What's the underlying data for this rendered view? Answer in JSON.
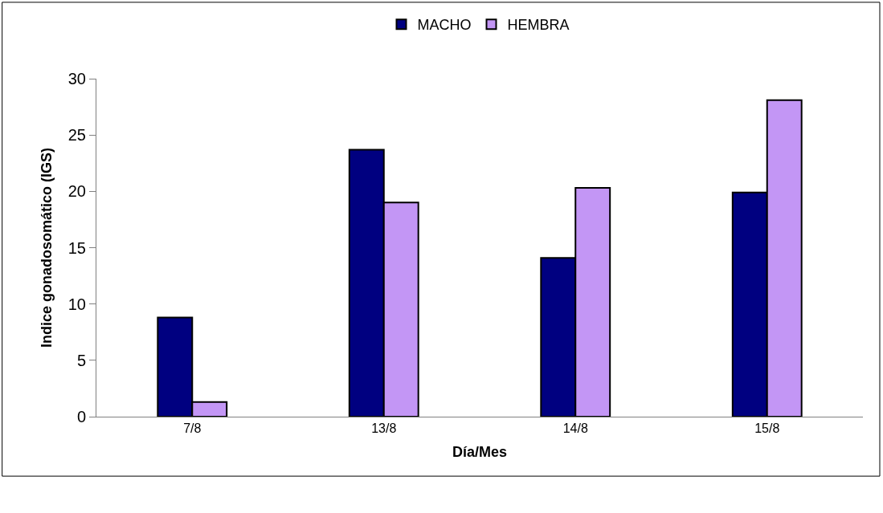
{
  "chart_data": {
    "type": "bar",
    "xlabel": "Día/Mes",
    "ylabel": "Indice gonadosomático (IGS)",
    "categories": [
      "7/8",
      "13/8",
      "14/8",
      "15/8"
    ],
    "series": [
      {
        "name": "MACHO",
        "color": "#000080",
        "values": [
          8.8,
          23.7,
          14.1,
          19.9
        ]
      },
      {
        "name": "HEMBRA",
        "color": "#c396f5",
        "values": [
          1.3,
          19.0,
          20.3,
          28.1
        ]
      }
    ],
    "ylim": [
      0,
      30
    ],
    "yticks": [
      0,
      5,
      10,
      15,
      20,
      25,
      30
    ],
    "legend": "top"
  }
}
